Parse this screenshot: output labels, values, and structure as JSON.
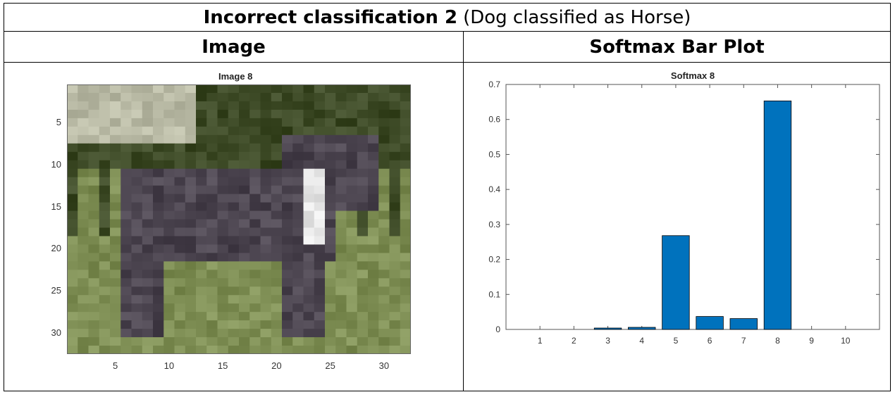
{
  "table": {
    "title_bold": "Incorrect classification 2",
    "title_rest": "(Dog classified as Horse)",
    "col1_header": "Image",
    "col2_header": "Softmax Bar Plot"
  },
  "image_panel": {
    "title": "Image 8",
    "x_ticks": [
      "5",
      "10",
      "15",
      "20",
      "25",
      "30"
    ],
    "y_ticks": [
      "5",
      "10",
      "15",
      "20",
      "25",
      "30"
    ],
    "palette": {
      "grass": "#7f8f55",
      "dark_grass": "#3d4a26",
      "dog": "#4c4550",
      "sky_patch": "#b8b9a4",
      "white_patch": "#e6e6e6"
    }
  },
  "chart_data": {
    "type": "bar",
    "title": "Softmax 8",
    "categories": [
      "1",
      "2",
      "3",
      "4",
      "5",
      "6",
      "7",
      "8",
      "9",
      "10"
    ],
    "values": [
      0.0,
      0.0,
      0.004,
      0.006,
      0.268,
      0.037,
      0.031,
      0.653,
      0.0,
      0.0
    ],
    "ylim": [
      0,
      0.7
    ],
    "y_ticks": [
      "0",
      "0.1",
      "0.2",
      "0.3",
      "0.4",
      "0.5",
      "0.6",
      "0.7"
    ],
    "xlabel": "",
    "ylabel": "",
    "bar_color": "#0072bd",
    "grid": false
  }
}
